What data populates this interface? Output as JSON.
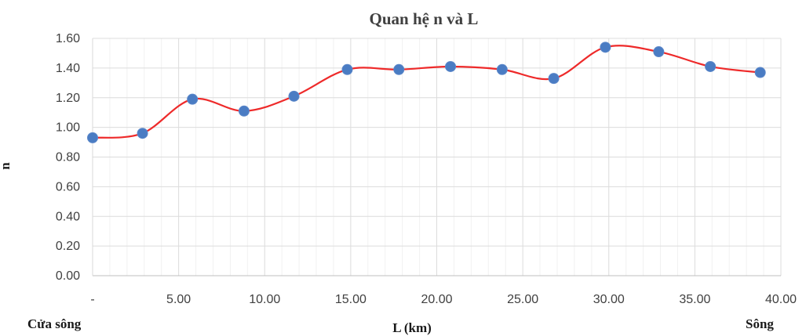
{
  "chart_data": {
    "type": "line",
    "title": "Quan hệ n và L",
    "xlabel": "L (km)",
    "ylabel": "n",
    "x_left_label": "Cửa sông",
    "x_right_label": "Sông",
    "xlim": [
      0,
      40
    ],
    "ylim": [
      0,
      1.6
    ],
    "x_ticks": [
      {
        "value": 0,
        "label": "-"
      },
      {
        "value": 5,
        "label": "5.00"
      },
      {
        "value": 10,
        "label": "10.00"
      },
      {
        "value": 15,
        "label": "15.00"
      },
      {
        "value": 20,
        "label": "20.00"
      },
      {
        "value": 25,
        "label": "25.00"
      },
      {
        "value": 30,
        "label": "30.00"
      },
      {
        "value": 35,
        "label": "35.00"
      },
      {
        "value": 40,
        "label": "40.00"
      }
    ],
    "y_ticks": [
      {
        "value": 0,
        "label": "0.00"
      },
      {
        "value": 0.2,
        "label": "0.20"
      },
      {
        "value": 0.4,
        "label": "0.40"
      },
      {
        "value": 0.6,
        "label": "0.60"
      },
      {
        "value": 0.8,
        "label": "0.80"
      },
      {
        "value": 1.0,
        "label": "1.00"
      },
      {
        "value": 1.2,
        "label": "1.20"
      },
      {
        "value": 1.4,
        "label": "1.40"
      },
      {
        "value": 1.6,
        "label": "1.60"
      }
    ],
    "grid": true,
    "legend": "none",
    "series": [
      {
        "line_color": "#ee2a2a",
        "marker_color": "#4a7cc3",
        "smooth": true,
        "x": [
          0,
          2.9,
          5.8,
          8.8,
          11.7,
          14.8,
          17.8,
          20.8,
          23.8,
          26.8,
          29.8,
          32.9,
          35.9,
          38.8
        ],
        "y": [
          0.93,
          0.96,
          1.19,
          1.11,
          1.21,
          1.39,
          1.39,
          1.41,
          1.39,
          1.33,
          1.54,
          1.51,
          1.41,
          1.37
        ]
      }
    ]
  }
}
